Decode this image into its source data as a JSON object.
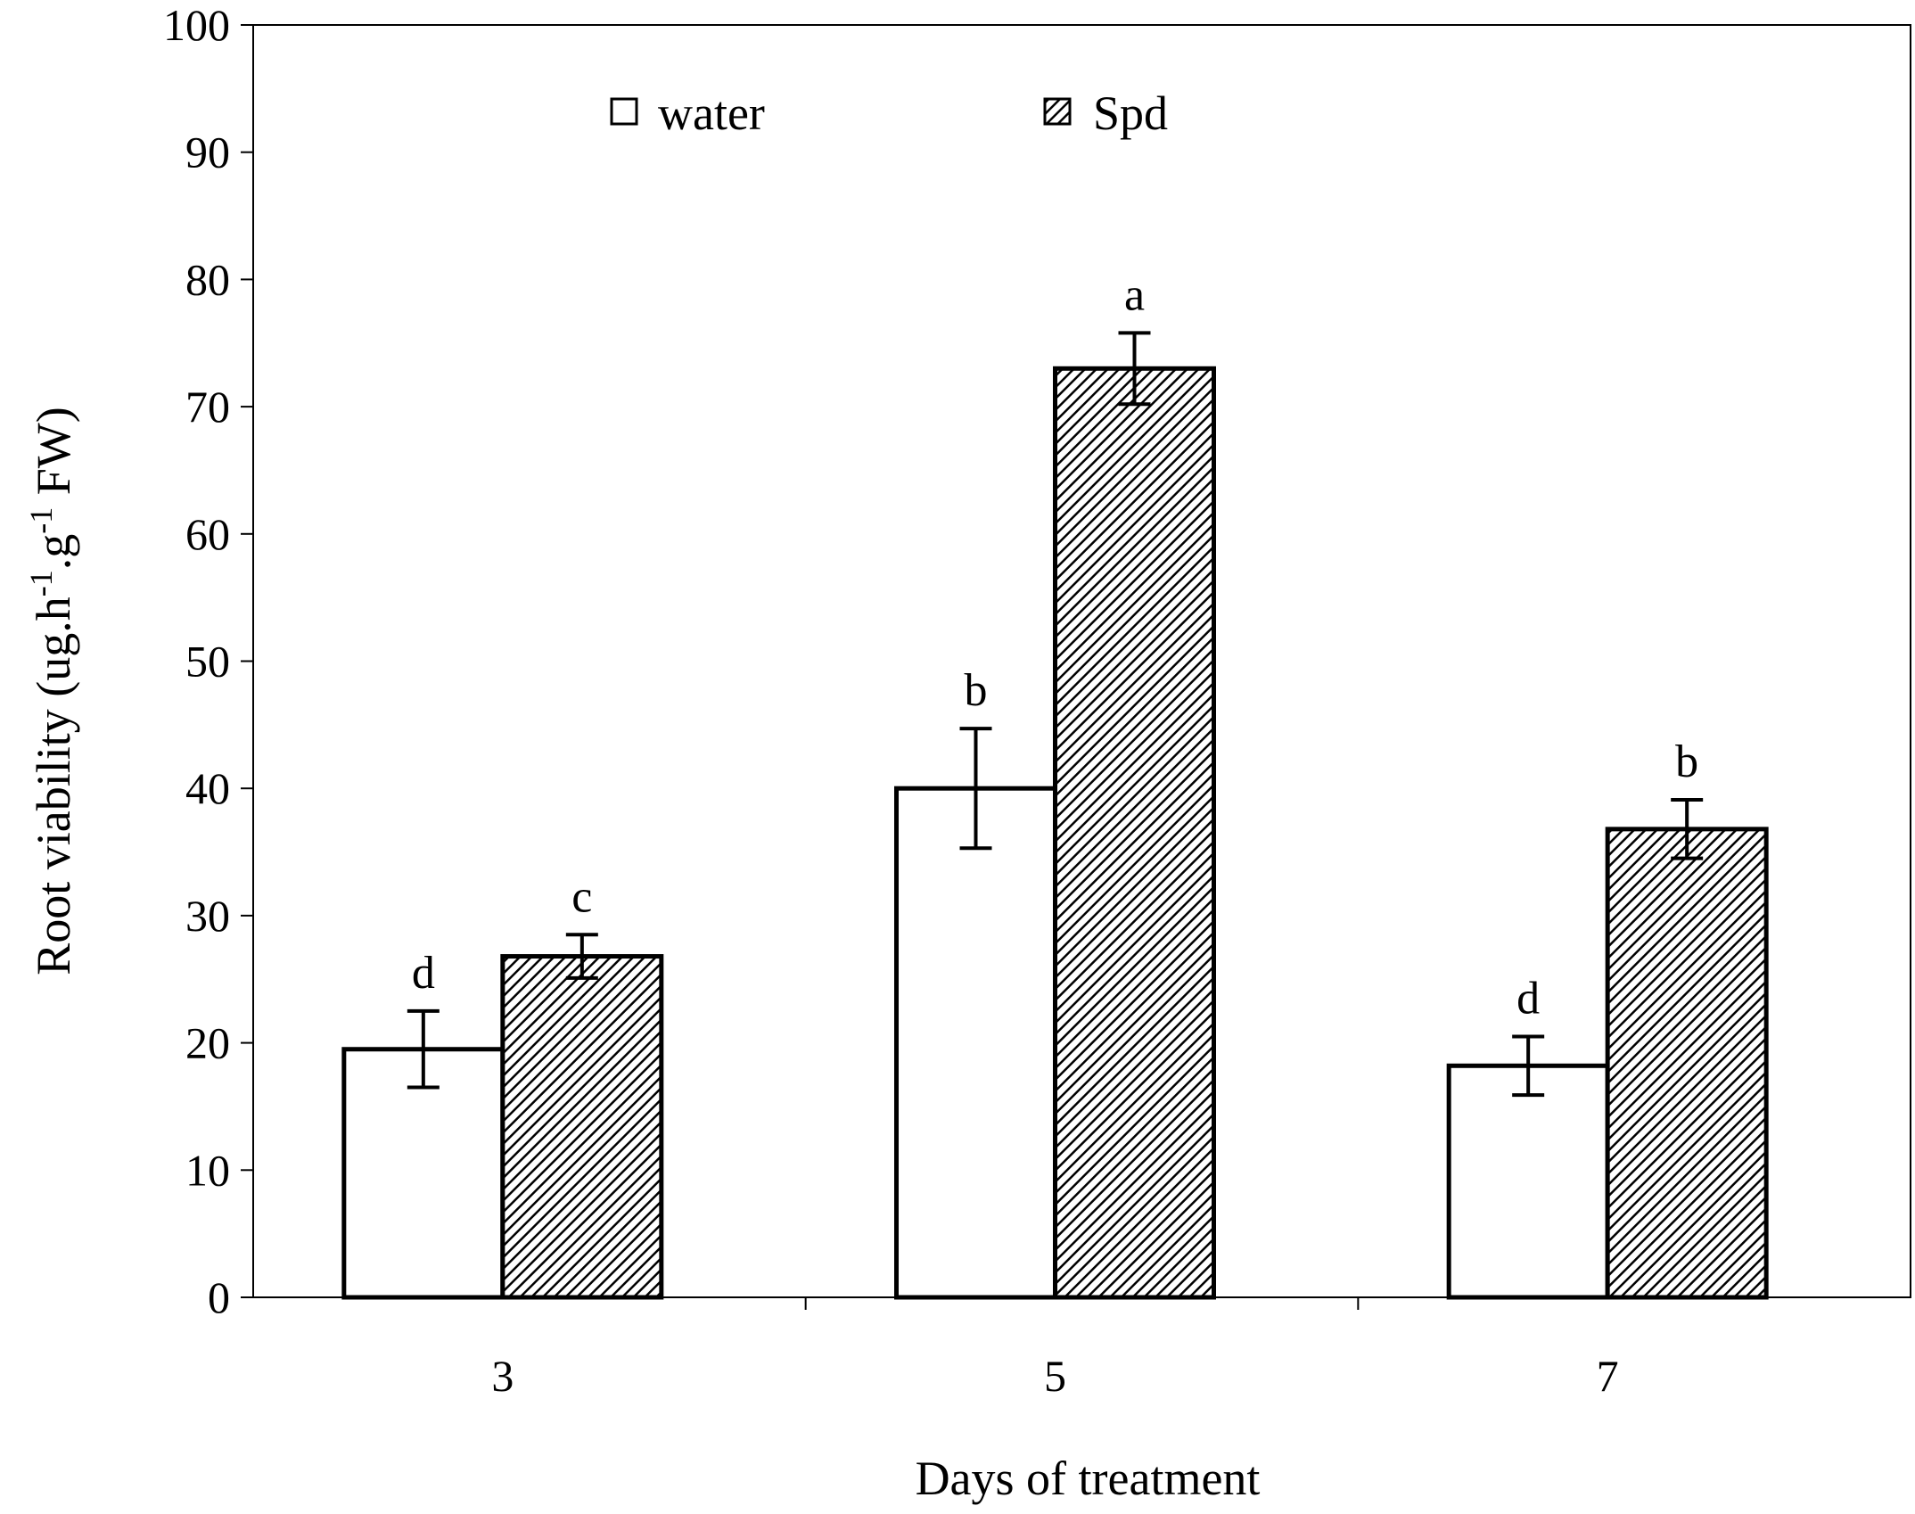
{
  "chart_data": {
    "type": "bar",
    "title": "",
    "xlabel": "Days of treatment",
    "ylabel": {
      "main": "Root viability (ug.h",
      "sup1": "-1",
      "mid": ".g",
      "sup2": "-1",
      "end": " FW)"
    },
    "categories": [
      "3",
      "5",
      "7"
    ],
    "ylim": [
      0,
      100
    ],
    "yticks": [
      0,
      10,
      20,
      30,
      40,
      50,
      60,
      70,
      80,
      90,
      100
    ],
    "grid": false,
    "legend_position": "top",
    "series": [
      {
        "name": "water",
        "fill": "white",
        "values": [
          19.5,
          40.0,
          18.2
        ],
        "errors": [
          3.0,
          4.7,
          2.3
        ],
        "labels": [
          "d",
          "b",
          "d"
        ]
      },
      {
        "name": "Spd",
        "fill": "hatched",
        "values": [
          26.8,
          73.0,
          36.8
        ],
        "errors": [
          1.7,
          2.8,
          2.3
        ],
        "labels": [
          "c",
          "a",
          "b"
        ]
      }
    ]
  },
  "colors": {
    "axis": "#000000",
    "bar_stroke": "#000000",
    "water_fill": "#ffffff",
    "hatch": "#000000"
  }
}
